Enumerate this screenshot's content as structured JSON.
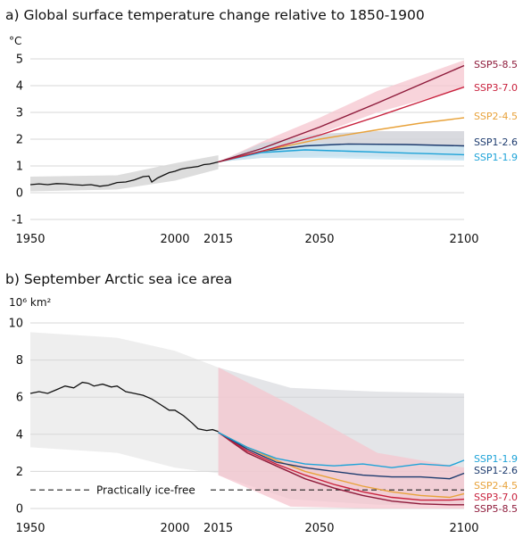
{
  "chart_data": [
    {
      "type": "line",
      "title": "a) Global surface temperature change relative to 1850-1900",
      "ylabel": "°C",
      "xlim": [
        1950,
        2100
      ],
      "ylim": [
        -1,
        5
      ],
      "xticks": [
        "1950",
        "2000",
        "2015",
        "2050",
        "2100"
      ],
      "yticks": [
        "-1",
        "0",
        "1",
        "2",
        "3",
        "4",
        "5"
      ],
      "grid": "horizontal",
      "colors": {
        "historical": "#111111",
        "historical_band": "#d9d9d9",
        "SSP1-1.9": "#1ea3d8",
        "SSP1-2.6": "#1d3b6e",
        "SSP2-4.5": "#e8a23a",
        "SSP3-7.0": "#c8203c",
        "SSP5-8.5": "#8e1b3b",
        "high_band": "#f6c6cf",
        "low_band": "#c9e6f4",
        "ssp126_band": "#d2d4d9"
      },
      "historical": {
        "x": [
          1950,
          1953,
          1956,
          1959,
          1962,
          1965,
          1968,
          1971,
          1974,
          1977,
          1980,
          1983,
          1986,
          1989,
          1991,
          1992,
          1994,
          1996,
          1998,
          2000,
          2002,
          2004,
          2006,
          2008,
          2010,
          2012,
          2015
        ],
        "y": [
          0.3,
          0.33,
          0.3,
          0.34,
          0.33,
          0.3,
          0.28,
          0.3,
          0.24,
          0.28,
          0.38,
          0.4,
          0.48,
          0.6,
          0.62,
          0.4,
          0.55,
          0.65,
          0.75,
          0.8,
          0.88,
          0.92,
          0.95,
          0.98,
          1.05,
          1.07,
          1.15
        ]
      },
      "historical_band": {
        "x": [
          1950,
          1980,
          2000,
          2015
        ],
        "low": [
          0.05,
          0.12,
          0.45,
          0.88
        ],
        "high": [
          0.6,
          0.65,
          1.1,
          1.4
        ]
      },
      "series": [
        {
          "name": "SSP5-8.5",
          "x": [
            2015,
            2030,
            2050,
            2070,
            2085,
            2100
          ],
          "y": [
            1.15,
            1.65,
            2.45,
            3.35,
            4.05,
            4.75
          ]
        },
        {
          "name": "SSP3-7.0",
          "x": [
            2015,
            2030,
            2050,
            2070,
            2085,
            2100
          ],
          "y": [
            1.15,
            1.55,
            2.15,
            2.85,
            3.4,
            3.95
          ]
        },
        {
          "name": "SSP2-4.5",
          "x": [
            2015,
            2030,
            2050,
            2070,
            2085,
            2100
          ],
          "y": [
            1.15,
            1.55,
            2.0,
            2.35,
            2.6,
            2.8
          ]
        },
        {
          "name": "SSP1-2.6",
          "x": [
            2015,
            2030,
            2045,
            2060,
            2080,
            2100
          ],
          "y": [
            1.15,
            1.55,
            1.75,
            1.82,
            1.8,
            1.75
          ]
        },
        {
          "name": "SSP1-1.9",
          "x": [
            2015,
            2030,
            2045,
            2060,
            2080,
            2100
          ],
          "y": [
            1.15,
            1.5,
            1.6,
            1.55,
            1.48,
            1.42
          ]
        }
      ],
      "bands": [
        {
          "kind": "high_band",
          "x": [
            2015,
            2030,
            2050,
            2070,
            2100
          ],
          "low": [
            1.15,
            1.5,
            2.2,
            3.0,
            3.9
          ],
          "high": [
            1.15,
            1.9,
            2.8,
            3.8,
            4.95
          ]
        },
        {
          "kind": "ssp126_band",
          "x": [
            2015,
            2030,
            2050,
            2070,
            2100
          ],
          "low": [
            1.15,
            1.3,
            1.35,
            1.35,
            1.25
          ],
          "high": [
            1.15,
            1.85,
            2.2,
            2.3,
            2.3
          ]
        },
        {
          "kind": "low_band",
          "x": [
            2015,
            2030,
            2050,
            2070,
            2100
          ],
          "low": [
            1.15,
            1.3,
            1.3,
            1.25,
            1.2
          ],
          "high": [
            1.15,
            1.7,
            1.85,
            1.8,
            1.75
          ]
        }
      ]
    },
    {
      "type": "line",
      "title": "b) September Arctic sea ice area",
      "ylabel": "10⁶ km²",
      "xlim": [
        1950,
        2100
      ],
      "ylim": [
        0,
        10
      ],
      "xticks": [
        "1950",
        "2000",
        "2015",
        "2050",
        "2100"
      ],
      "yticks": [
        "0",
        "2",
        "4",
        "6",
        "8",
        "10"
      ],
      "grid": "horizontal",
      "annotation": "Practically ice-free",
      "threshold": 1,
      "historical": {
        "x": [
          1950,
          1953,
          1956,
          1959,
          1962,
          1965,
          1968,
          1970,
          1972,
          1975,
          1978,
          1980,
          1983,
          1986,
          1989,
          1992,
          1995,
          1998,
          2000,
          2003,
          2006,
          2008,
          2011,
          2013,
          2015
        ],
        "y": [
          6.2,
          6.3,
          6.2,
          6.4,
          6.6,
          6.5,
          6.8,
          6.75,
          6.6,
          6.7,
          6.55,
          6.6,
          6.3,
          6.2,
          6.1,
          5.9,
          5.6,
          5.3,
          5.3,
          5.0,
          4.6,
          4.3,
          4.2,
          4.25,
          4.15
        ]
      },
      "historical_band": {
        "x": [
          1950,
          1980,
          2000,
          2015
        ],
        "low": [
          3.3,
          3.0,
          2.2,
          1.9
        ],
        "high": [
          9.5,
          9.2,
          8.5,
          7.6
        ]
      },
      "series": [
        {
          "name": "SSP1-1.9",
          "x": [
            2015,
            2025,
            2035,
            2045,
            2055,
            2065,
            2075,
            2085,
            2095,
            2100
          ],
          "y": [
            4.1,
            3.3,
            2.7,
            2.4,
            2.3,
            2.4,
            2.2,
            2.4,
            2.3,
            2.6
          ]
        },
        {
          "name": "SSP1-2.6",
          "x": [
            2015,
            2025,
            2035,
            2045,
            2055,
            2065,
            2075,
            2085,
            2095,
            2100
          ],
          "y": [
            4.1,
            3.2,
            2.5,
            2.2,
            2.0,
            1.8,
            1.7,
            1.7,
            1.6,
            1.9
          ]
        },
        {
          "name": "SSP2-4.5",
          "x": [
            2015,
            2025,
            2035,
            2045,
            2055,
            2065,
            2075,
            2085,
            2095,
            2100
          ],
          "y": [
            4.1,
            3.3,
            2.6,
            2.0,
            1.6,
            1.2,
            0.9,
            0.7,
            0.6,
            0.8
          ]
        },
        {
          "name": "SSP3-7.0",
          "x": [
            2015,
            2025,
            2035,
            2045,
            2055,
            2065,
            2075,
            2085,
            2095,
            2100
          ],
          "y": [
            4.1,
            3.1,
            2.4,
            1.8,
            1.3,
            0.9,
            0.6,
            0.45,
            0.45,
            0.5
          ]
        },
        {
          "name": "SSP5-8.5",
          "x": [
            2015,
            2025,
            2035,
            2045,
            2055,
            2065,
            2075,
            2085,
            2095,
            2100
          ],
          "y": [
            4.1,
            3.0,
            2.3,
            1.6,
            1.1,
            0.7,
            0.4,
            0.25,
            0.2,
            0.2
          ]
        }
      ],
      "bands": [
        {
          "kind": "ssp126_band",
          "x": [
            2015,
            2040,
            2070,
            2100
          ],
          "low": [
            1.8,
            0.5,
            0.2,
            0.2
          ],
          "high": [
            7.6,
            6.5,
            6.3,
            6.2
          ]
        },
        {
          "kind": "high_band",
          "x": [
            2015,
            2040,
            2070,
            2100
          ],
          "low": [
            1.8,
            0.1,
            0.0,
            0.0
          ],
          "high": [
            7.6,
            5.6,
            3.0,
            2.2
          ]
        }
      ]
    }
  ]
}
